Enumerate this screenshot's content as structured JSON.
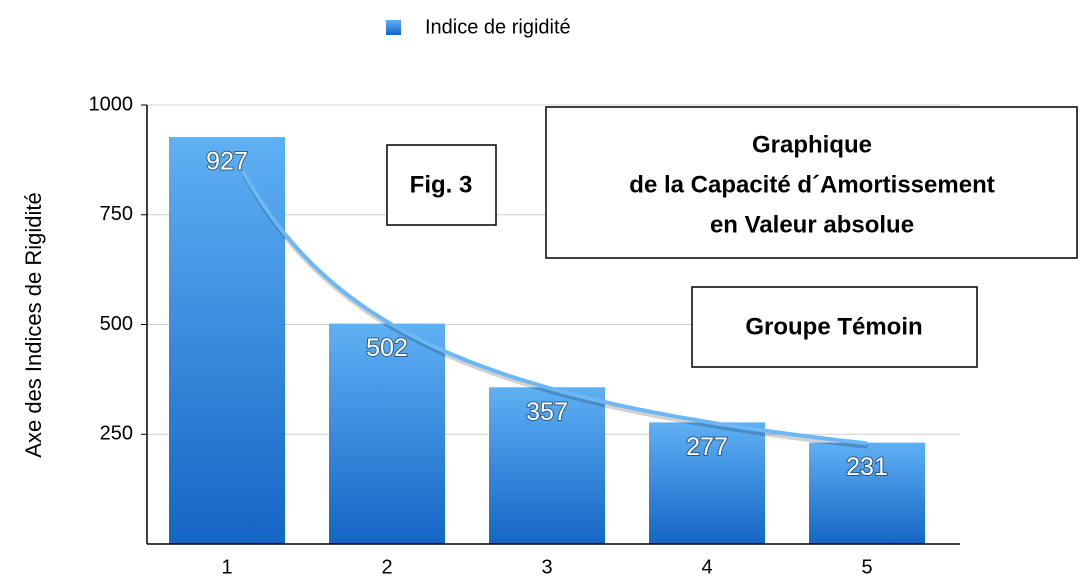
{
  "chart_data": {
    "type": "bar",
    "title_lines": [
      "Graphique",
      "de la Capacité d´Amortissement",
      "en Valeur absolue"
    ],
    "annotations": [
      "Fig. 3",
      "Groupe Témoin"
    ],
    "y_label": "Axe des Indices de Rigidité",
    "categories": [
      "1",
      "2",
      "3",
      "4",
      "5"
    ],
    "series": [
      {
        "name": "Indice de rigidité",
        "color": "#2f86e0",
        "values": [
          927,
          502,
          357,
          277,
          231
        ]
      }
    ],
    "ylim": [
      0,
      1000
    ],
    "yticks": [
      250,
      500,
      750,
      1000
    ],
    "grid": true,
    "trendline": true,
    "legend": "top"
  }
}
